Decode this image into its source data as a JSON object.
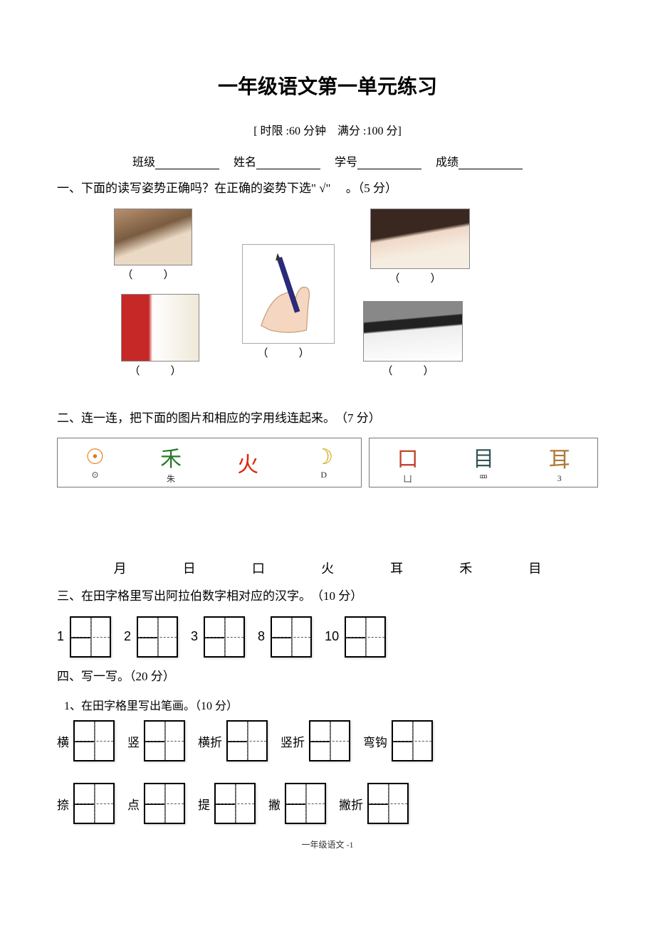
{
  "title": "一年级语文第一单元练习",
  "subtitle": "[ 时限 :60 分钟　满分 :100 分]",
  "info": {
    "class": "班级",
    "name": "姓名",
    "id": "学号",
    "score": "成绩"
  },
  "q1": {
    "prompt": "一、下面的读写姿势正确吗？在正确的姿势下选\" √\" 　。（5 分）",
    "paren": "（　）"
  },
  "q2": {
    "prompt": "二、连一连，把下面的图片和相应的字用线连起来。　（7 分）",
    "chars": [
      "月",
      "日",
      "口",
      "火",
      "耳",
      "禾",
      "目"
    ],
    "pictos_left": [
      {
        "glyph": "☉",
        "mini": "⊙",
        "color": "#e67817"
      },
      {
        "glyph": "禾",
        "mini": "朱",
        "color": "#2a7a2a"
      },
      {
        "glyph": "火",
        "mini": "",
        "color": "#d9280b"
      },
      {
        "glyph": "☽",
        "mini": "D",
        "color": "#c9a400"
      }
    ],
    "pictos_right": [
      {
        "glyph": "口",
        "mini": "凵",
        "color": "#c1462f"
      },
      {
        "glyph": "目",
        "mini": "罒",
        "color": "#355"
      },
      {
        "glyph": "耳",
        "mini": "3",
        "color": "#b07838"
      }
    ]
  },
  "q3": {
    "prompt": "三、在田字格里写出阿拉伯数字相对应的汉字。　（10 分）",
    "numbers": [
      "1",
      "2",
      "3",
      "8",
      "10"
    ]
  },
  "q4": {
    "prompt": "四、写一写。（20 分）",
    "sub1": "1、在田字格里写出笔画。（10 分）",
    "row1": [
      "横",
      "竖",
      "横折",
      "竖折",
      "弯钩"
    ],
    "row2": [
      "捺",
      "点",
      "提",
      "撇",
      "撇折"
    ]
  },
  "footer": "一年级语文 -1"
}
